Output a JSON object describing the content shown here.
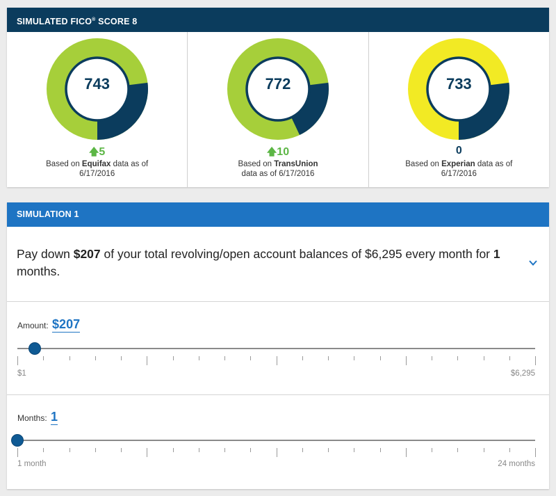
{
  "scores_card": {
    "title": "SIMULATED FICO",
    "title_sup": "®",
    "title_suffix": " SCORE 8",
    "scores": [
      {
        "score": "743",
        "change": "5",
        "direction": "up",
        "based_pre": "Based on ",
        "bureau": "Equifax",
        "based_post": " data as of 6/17/2016",
        "ring_color": "#a6cf3a",
        "dark_fraction": 0.27
      },
      {
        "score": "772",
        "change": "10",
        "direction": "up",
        "based_pre": "Based on ",
        "bureau": "TransUnion",
        "based_post": " data as of 6/17/2016",
        "ring_color": "#a6cf3a",
        "dark_fraction": 0.2
      },
      {
        "score": "733",
        "change": "0",
        "direction": "none",
        "based_pre": "Based on ",
        "bureau": "Experian",
        "based_post": " data as of 6/17/2016",
        "ring_color": "#f2ea24",
        "dark_fraction": 0.27
      }
    ],
    "colors": {
      "dark": "#0b3c5d",
      "up": "#5cb645"
    },
    "icons": {
      "up": "arrow-up-icon"
    }
  },
  "simulation": {
    "title": "SIMULATION 1",
    "desc_pre": "Pay down ",
    "desc_amount": "$207",
    "desc_mid": " of your total revolving/open account balances of $6,295 every month for ",
    "desc_months": "1",
    "desc_post": " months.",
    "chevron_icon": "chevron-down-icon",
    "amount_slider": {
      "label": "Amount:",
      "value": "$207",
      "min_label": "$1",
      "max_label": "$6,295",
      "fraction": 0.033
    },
    "months_slider": {
      "label": "Months:",
      "value": "1",
      "min_label": "1 month",
      "max_label": "24 months",
      "fraction": 0.0
    }
  }
}
